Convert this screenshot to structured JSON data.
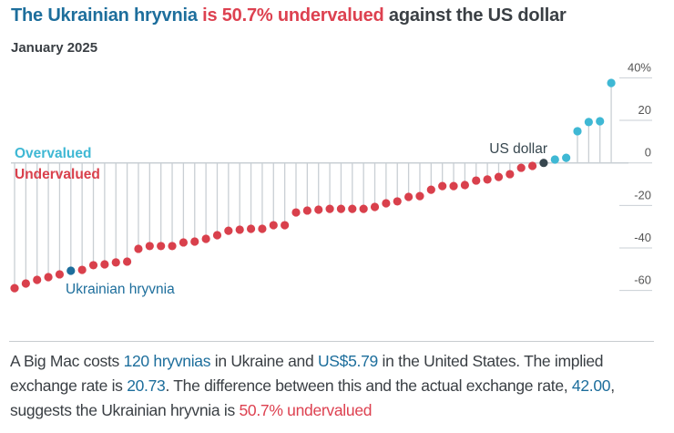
{
  "title": {
    "part1": "The Ukrainian hryvnia",
    "part2": " is 50.7% undervalued",
    "part3": " against the US dollar"
  },
  "subtitle": "January 2025",
  "colors": {
    "title_blue": "#1d6e9c",
    "undervalued": "#d9404c",
    "overvalued": "#3fb8d4",
    "highlight": "#1d6e9c",
    "base": "#37474f",
    "stem": "#c9cfd4"
  },
  "chart_data": {
    "type": "lollipop",
    "title": "",
    "ylim": [
      -62,
      42
    ],
    "yticks": [
      40,
      20,
      0,
      -20,
      -40,
      -60
    ],
    "ytick_labels": [
      "40%",
      "20",
      "0",
      "-20",
      "-40",
      "-60"
    ],
    "grid": false,
    "zone_labels": {
      "over": "Overvalued",
      "under": "Undervalued"
    },
    "annotations": {
      "highlight": "Ukrainian hryvnia",
      "base": "US dollar"
    },
    "highlight_index": 5,
    "base_index": 47,
    "values": [
      -58.9,
      -56.7,
      -55.0,
      -53.7,
      -52.4,
      -50.7,
      -50.3,
      -48.1,
      -47.7,
      -46.8,
      -46.4,
      -40.4,
      -39.1,
      -39.1,
      -39.1,
      -37.4,
      -37.0,
      -35.7,
      -34.0,
      -31.9,
      -31.4,
      -31.0,
      -31.0,
      -29.3,
      -29.3,
      -23.3,
      -22.4,
      -22.0,
      -21.6,
      -21.6,
      -21.6,
      -21.6,
      -20.7,
      -19.0,
      -18.1,
      -16.0,
      -15.6,
      -12.6,
      -10.9,
      -10.9,
      -10.4,
      -8.3,
      -7.8,
      -6.6,
      -5.3,
      -2.3,
      -1.4,
      0,
      1.6,
      2.4,
      14.9,
      19.2,
      19.6,
      37.6
    ]
  },
  "description": {
    "t1": "A Big Mac costs ",
    "v1": "120 hryvnias",
    "t2": " in Ukraine and ",
    "v2": "US$5.79",
    "t3": " in the United States. The implied exchange rate is ",
    "v3": "20.73",
    "t4": ". The difference between this and the actual exchange rate, ",
    "v4": "42.00",
    "t5": ", suggests the Ukrainian hryvnia is ",
    "v5": "50.7% undervalued"
  }
}
